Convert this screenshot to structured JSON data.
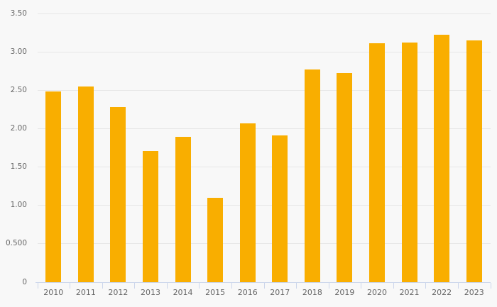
{
  "chart_data": {
    "type": "bar",
    "title": "",
    "xlabel": "",
    "ylabel": "",
    "categories": [
      "2010",
      "2011",
      "2012",
      "2013",
      "2014",
      "2015",
      "2016",
      "2017",
      "2018",
      "2019",
      "2020",
      "2021",
      "2022",
      "2023"
    ],
    "values": [
      2.49,
      2.55,
      2.28,
      1.71,
      1.9,
      1.1,
      2.07,
      1.91,
      2.77,
      2.73,
      3.12,
      3.13,
      3.23,
      3.15
    ],
    "ylim": [
      0,
      3.5
    ],
    "ytick_interval": 0.5,
    "ytick_labels": [
      "0",
      "0.500",
      "1.00",
      "1.50",
      "2.00",
      "2.50",
      "3.00",
      "3.50"
    ],
    "grid": true,
    "legend": "none"
  },
  "colors": {
    "bar": "#F9AE00",
    "background": "#F8F8F8",
    "gridline": "#E7E7E7",
    "axis": "#CCD6EB",
    "label_text": "#666666"
  }
}
